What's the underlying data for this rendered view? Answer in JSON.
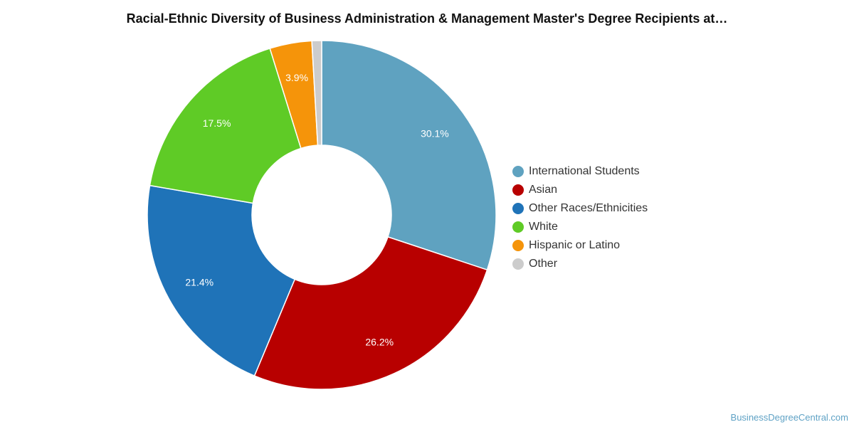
{
  "chart_data": {
    "type": "pie",
    "donut": true,
    "title": "Racial-Ethnic Diversity of Business Administration & Management Master's Degree Recipients at…",
    "legend_position": "right",
    "slices": [
      {
        "name": "International Students",
        "value": 30.1,
        "label": "30.1%",
        "color": "#5fa2c0"
      },
      {
        "name": "Asian",
        "value": 26.2,
        "label": "26.2%",
        "color": "#b80000"
      },
      {
        "name": "Other Races/Ethnicities",
        "value": 21.4,
        "label": "21.4%",
        "color": "#1f73b8"
      },
      {
        "name": "White",
        "value": 17.5,
        "label": "17.5%",
        "color": "#5fcb26"
      },
      {
        "name": "Hispanic or Latino",
        "value": 3.9,
        "label": "3.9%",
        "color": "#f5940a"
      },
      {
        "name": "Other",
        "value": 0.9,
        "label": "",
        "color": "#cccccc"
      }
    ]
  },
  "source": "BusinessDegreeCentral.com"
}
